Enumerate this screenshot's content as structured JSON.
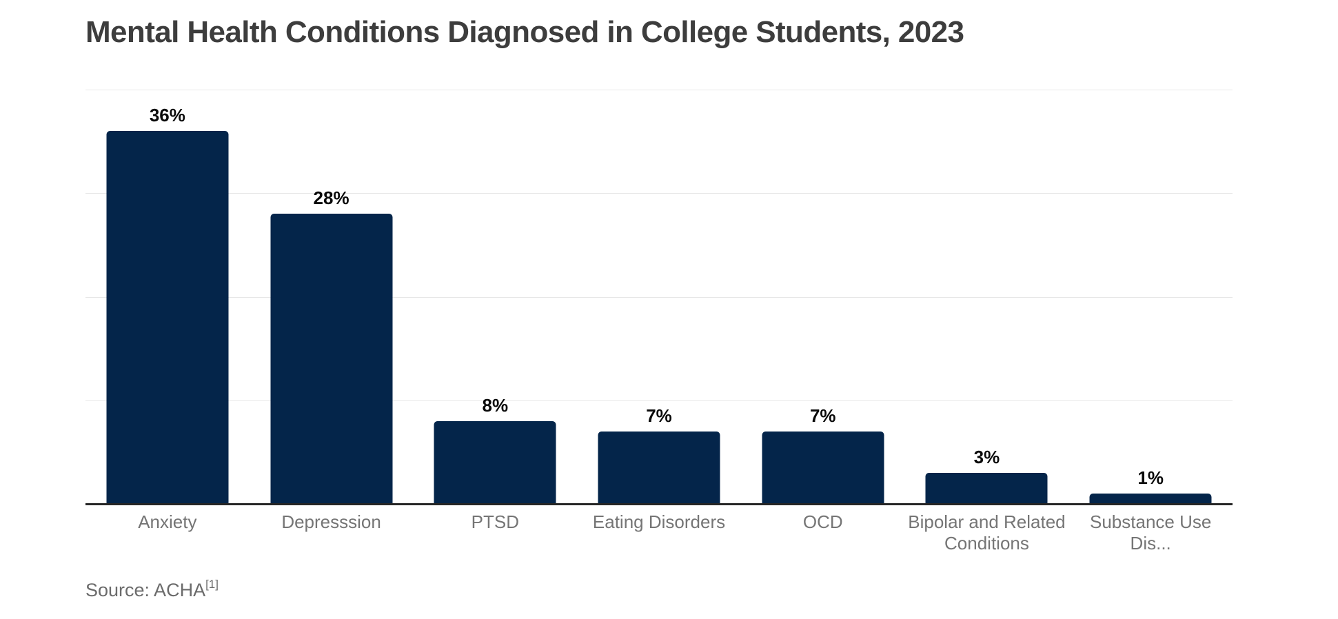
{
  "source": {
    "label": "Source: ACHA",
    "footnote": "[1]"
  },
  "style": {
    "background": "#ffffff",
    "bar_color": "#04254a",
    "gridline_color": "#e7e7e7",
    "axis_line_color": "#262626",
    "title_color": "#3d3d3d",
    "value_label_color": "#0a0a0a",
    "category_label_color": "#757575",
    "source_color": "#6b6b6b"
  },
  "chart_data": {
    "type": "bar",
    "title": "Mental Health Conditions Diagnosed in College Students, 2023",
    "categories": [
      "Anxiety",
      "Depresssion",
      "PTSD",
      "Eating Disorders",
      "OCD",
      "Bipolar and Related Conditions",
      "Substance Use Dis..."
    ],
    "category_display_lines": [
      [
        "Anxiety"
      ],
      [
        "Depresssion"
      ],
      [
        "PTSD"
      ],
      [
        "Eating Disorders"
      ],
      [
        "OCD"
      ],
      [
        "Bipolar and Related",
        "Conditions"
      ],
      [
        "Substance Use Dis..."
      ]
    ],
    "values": [
      36,
      28,
      8,
      7,
      7,
      3,
      1
    ],
    "value_labels": [
      "36%",
      "28%",
      "8%",
      "7%",
      "7%",
      "3%",
      "1%"
    ],
    "unit": "%",
    "xlabel": "",
    "ylabel": "",
    "ylim": [
      0,
      40
    ],
    "gridlines_percent": [
      10,
      20,
      30,
      40
    ],
    "grid": "horizontal",
    "legend": "none",
    "data_label_position": "above-bar"
  }
}
